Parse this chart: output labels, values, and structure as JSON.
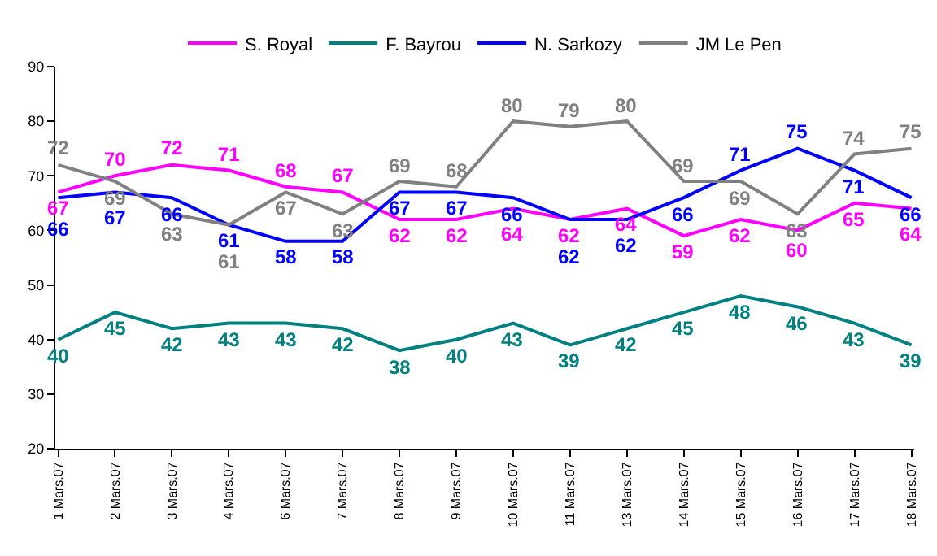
{
  "chart_data": {
    "type": "line",
    "categories": [
      "1 Mars.07",
      "2 Mars.07",
      "3 Mars.07",
      "4 Mars.07",
      "6 Mars.07",
      "7 Mars.07",
      "8 Mars.07",
      "9 Mars.07",
      "10 Mars.07",
      "11 Mars.07",
      "13 Mars.07",
      "14 Mars.07",
      "15 Mars.07",
      "16 Mars.07",
      "17 Mars.07",
      "18 Mars.07"
    ],
    "series": [
      {
        "name": "S. Royal",
        "color": "#ff00ff",
        "values": [
          67,
          70,
          72,
          71,
          68,
          67,
          62,
          62,
          64,
          62,
          64,
          59,
          62,
          60,
          65,
          64
        ]
      },
      {
        "name": "F. Bayrou",
        "color": "#008080",
        "values": [
          40,
          45,
          42,
          43,
          43,
          42,
          38,
          40,
          43,
          39,
          42,
          45,
          48,
          46,
          43,
          39
        ]
      },
      {
        "name": "N. Sarkozy",
        "color": "#0000ff",
        "values": [
          66,
          67,
          66,
          61,
          58,
          58,
          67,
          67,
          66,
          62,
          62,
          66,
          71,
          75,
          71,
          66
        ]
      },
      {
        "name": "JM Le Pen",
        "color": "#808080",
        "values": [
          72,
          69,
          63,
          61,
          67,
          63,
          69,
          68,
          80,
          79,
          80,
          69,
          69,
          63,
          74,
          75
        ]
      }
    ],
    "ylim": [
      20,
      90
    ],
    "yticks": [
      20,
      30,
      40,
      50,
      60,
      70,
      80,
      90
    ],
    "grid": false,
    "legend": "top",
    "data_labels": true,
    "marker": "none",
    "line_style": "solid"
  }
}
